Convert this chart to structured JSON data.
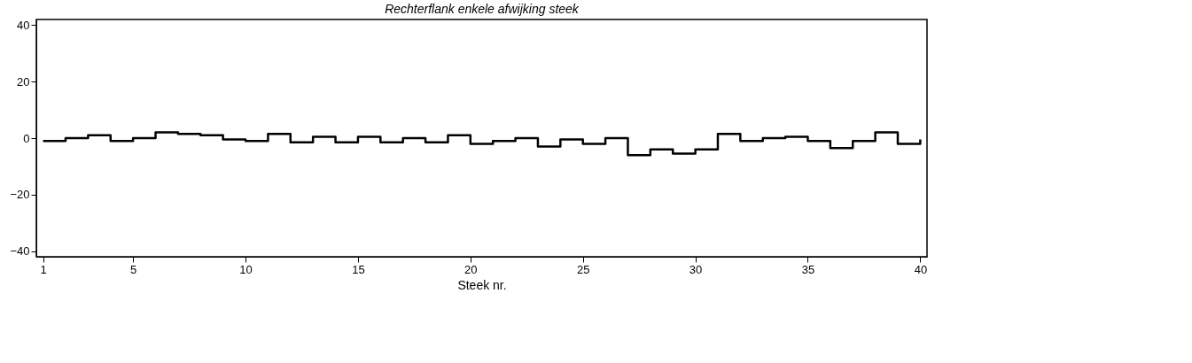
{
  "chart_data": {
    "type": "step",
    "title": "Rechterflank enkele afwijking steek",
    "xlabel": "Steek nr.",
    "x": [
      1,
      2,
      3,
      4,
      5,
      6,
      7,
      8,
      9,
      10,
      11,
      12,
      13,
      14,
      15,
      16,
      17,
      18,
      19,
      20,
      21,
      22,
      23,
      24,
      25,
      26,
      27,
      28,
      29,
      30,
      31,
      32,
      33,
      34,
      35,
      36,
      37,
      38,
      39,
      40
    ],
    "series": [
      {
        "color": "#000000",
        "values": [
          -1,
          0,
          1,
          -1,
          0,
          2,
          1.5,
          1,
          -0.5,
          -1,
          1.5,
          -1.5,
          0.5,
          -1.5,
          0.5,
          -1.5,
          0,
          -1.5,
          1,
          -2,
          -1,
          0,
          -3,
          -0.5,
          -2,
          0,
          -6,
          -4,
          -5.5,
          -4,
          1.5,
          -1,
          0,
          0.5,
          -1,
          -3.5,
          -1,
          2,
          -2,
          -0.5
        ]
      }
    ],
    "xlim": [
      0.7,
      40.3
    ],
    "ylim": [
      -42,
      42
    ],
    "xticks": [
      1,
      5,
      10,
      15,
      20,
      25,
      30,
      35,
      40
    ],
    "yticks": [
      -40,
      -20,
      0,
      20,
      40
    ],
    "grid": false,
    "marker": "none",
    "line_style": "solid"
  }
}
